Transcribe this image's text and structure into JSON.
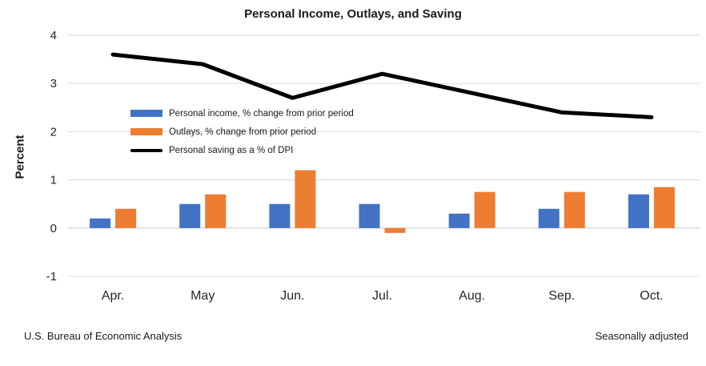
{
  "chart_data": {
    "type": "bar",
    "title": "Personal Income, Outlays, and Saving",
    "ylabel": "Percent",
    "xlabel": "",
    "categories": [
      "Apr.",
      "May",
      "Jun.",
      "Jul.",
      "Aug.",
      "Sep.",
      "Oct."
    ],
    "yticks": [
      4,
      3,
      2,
      1,
      0,
      -1
    ],
    "ylim": [
      -1,
      4
    ],
    "grid": true,
    "legend_position": "inside-upper-left",
    "series": [
      {
        "name": "Personal income, % change from prior period",
        "type": "bar",
        "color": "#4472C4",
        "values": [
          0.2,
          0.5,
          0.5,
          0.5,
          0.3,
          0.4,
          0.7
        ]
      },
      {
        "name": "Outlays, % change from prior period",
        "type": "bar",
        "color": "#ED7D31",
        "values": [
          0.4,
          0.7,
          1.2,
          -0.1,
          0.75,
          0.75,
          0.85
        ]
      },
      {
        "name": "Personal saving as a % of DPI",
        "type": "line",
        "color": "#000000",
        "values": [
          3.6,
          3.4,
          2.7,
          3.2,
          2.8,
          2.4,
          2.3
        ]
      }
    ],
    "colors": {
      "gridline": "#d9d9d9",
      "zero_line": "#c9c9c9",
      "tick_text": "#262626"
    }
  },
  "footer": {
    "source": "U.S. Bureau of Economic Analysis",
    "note": "Seasonally adjusted"
  }
}
